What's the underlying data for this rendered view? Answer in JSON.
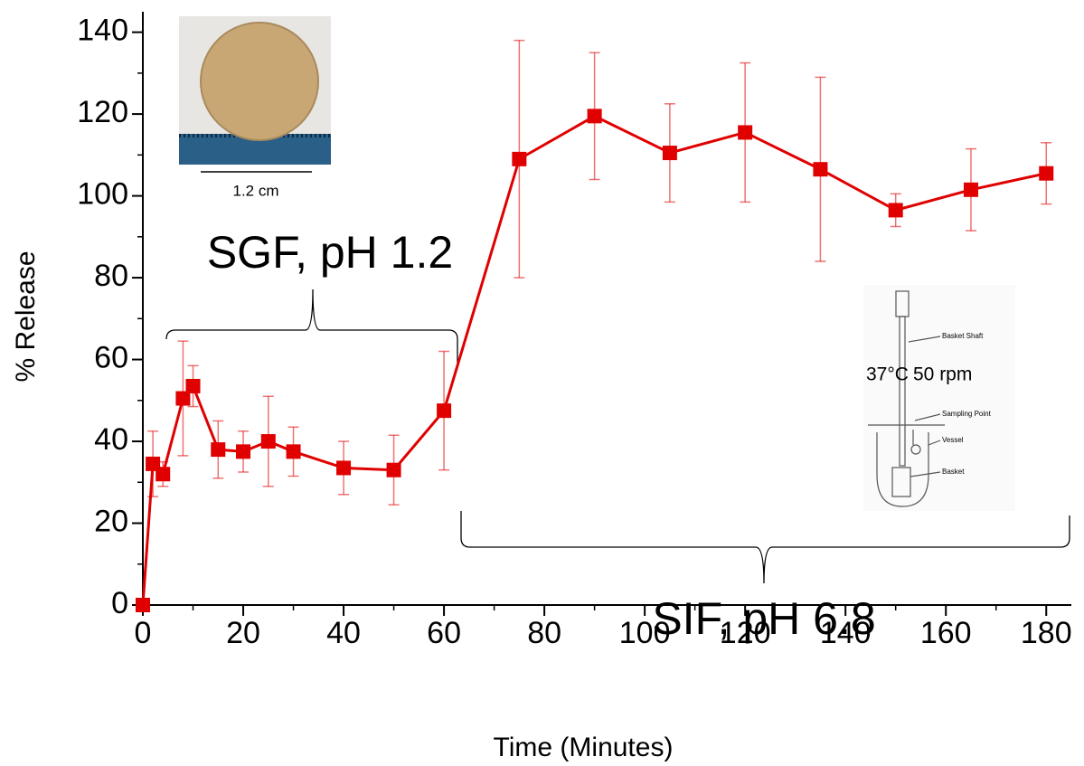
{
  "chart_data": {
    "type": "line",
    "x_label": "Time (Minutes)",
    "y_label": "% Release",
    "x": [
      0,
      2,
      4,
      8,
      10,
      15,
      20,
      25,
      30,
      40,
      50,
      60,
      75,
      90,
      105,
      120,
      135,
      150,
      165,
      180
    ],
    "values": [
      0,
      34.5,
      32,
      50.5,
      53.5,
      38,
      37.5,
      40,
      37.5,
      33.5,
      33,
      47.5,
      109,
      119.5,
      110.5,
      115.5,
      106.5,
      96.5,
      101.5,
      105.5
    ],
    "errors": [
      0,
      8,
      3,
      14,
      5,
      7,
      5,
      11,
      6,
      6.5,
      8.5,
      14.5,
      29,
      15.5,
      12,
      17,
      22.5,
      4,
      10,
      7.5
    ],
    "color": "#e00000",
    "xlim": [
      0,
      185
    ],
    "ylim": [
      0,
      145
    ],
    "xticks": [
      0,
      20,
      40,
      60,
      80,
      100,
      120,
      140,
      160,
      180
    ],
    "yticks": [
      0,
      20,
      40,
      60,
      80,
      100,
      120,
      140
    ],
    "annotations": {
      "sgf": "SGF, pH 1.2",
      "sif": "SIF, pH 6.8",
      "scale": "1.2 cm",
      "temperature": "37°C",
      "speed": "50 rpm",
      "shaft": "Basket Shaft",
      "sampling": "Sampling Point",
      "vessel": "Vessel",
      "basket": "Basket"
    }
  }
}
